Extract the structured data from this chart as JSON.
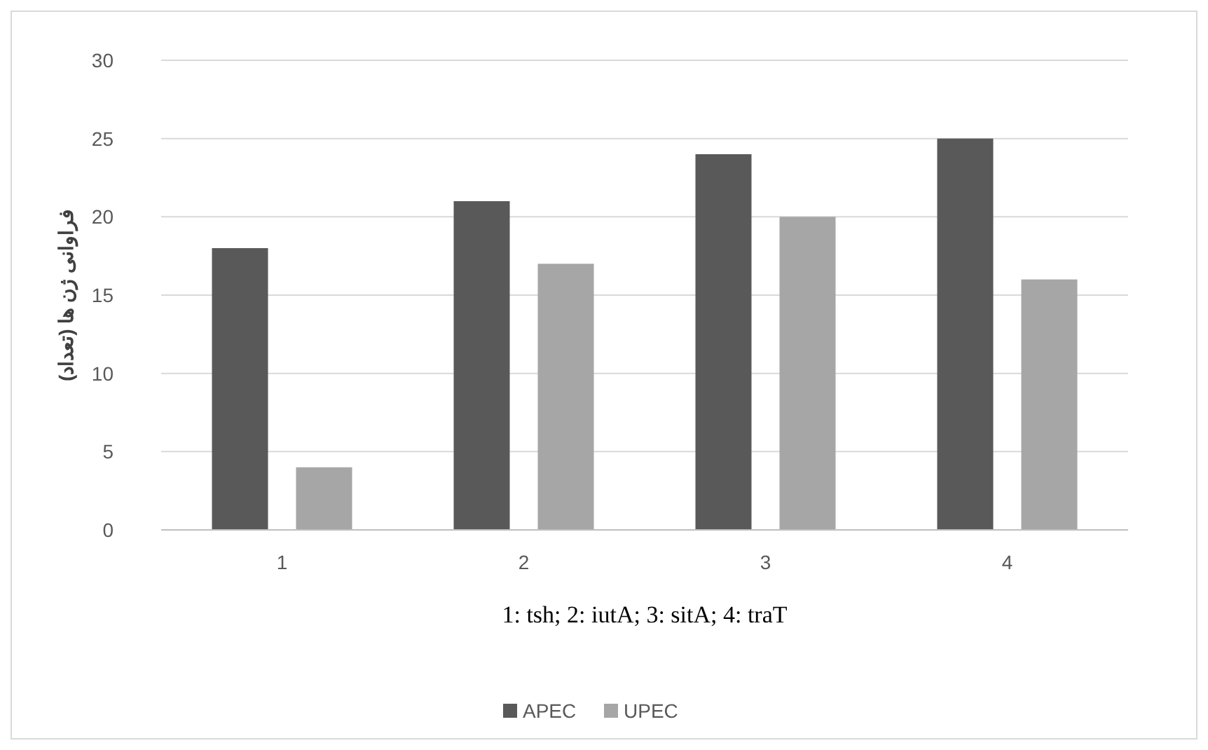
{
  "chart_data": {
    "type": "bar",
    "categories": [
      "1",
      "2",
      "3",
      "4"
    ],
    "series": [
      {
        "name": "APEC",
        "color": "#595959",
        "values": [
          18,
          21,
          24,
          25
        ]
      },
      {
        "name": "UPEC",
        "color": "#a6a6a6",
        "values": [
          4,
          17,
          20,
          16
        ]
      }
    ],
    "xlabel": "1: tsh; 2: iutA; 3: sitA; 4: traT",
    "ylabel": "فراوانی ژن ها (تعداد)",
    "ylim": [
      0,
      30
    ],
    "yticks": [
      0,
      5,
      10,
      15,
      20,
      25,
      30
    ],
    "grid": "y",
    "legend": "bottom"
  }
}
